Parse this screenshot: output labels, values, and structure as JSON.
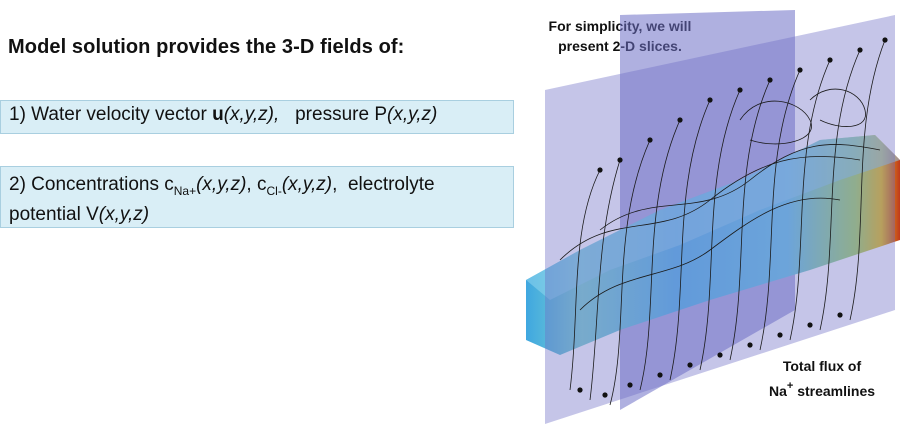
{
  "heading": "Model solution provides the 3-D fields of:",
  "item1": {
    "prefix": "1) Water velocity vector ",
    "u": "u",
    "args": "(x,y,z),",
    "mid": "   pressure P",
    "args2": "(x,y,z)"
  },
  "item2": {
    "prefix": "2) Concentrations c",
    "sub1": "Na+",
    "args1": "(x,y,z)",
    "sep": ", c",
    "sub2": "Cl-",
    "args2": "(x,y,z)",
    "mid": ",  electrolyte",
    "line2_prefix": "potential V",
    "args3": "(x,y,z)"
  },
  "caption_top": {
    "line1": "For simplicity, we will",
    "line2": "present 2-D slices."
  },
  "caption_bottom": {
    "line1": "Total flux of",
    "na": "Na",
    "sup": "+",
    "line2_rest": " streamlines"
  },
  "colors": {
    "box_bg": "#d9eef6",
    "slice": "#6e6fc6",
    "field_low": "#5ab8e8",
    "field_high": "#e8c21a"
  }
}
